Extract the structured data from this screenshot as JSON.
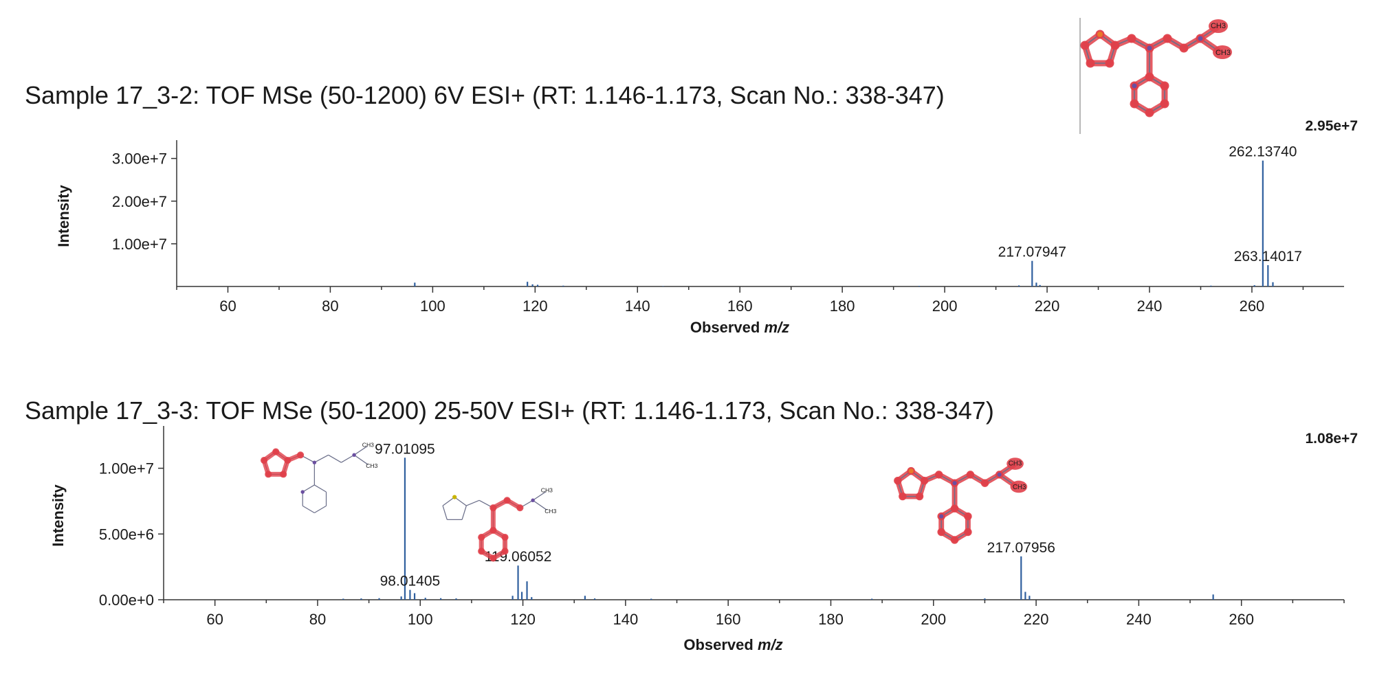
{
  "chart_data": [
    {
      "type": "bar",
      "title": "Sample 17_3-2: TOF MSe (50-1200) 6V ESI+ (RT: 1.146-1.173, Scan No.: 338-347)",
      "xlabel_prefix": "Observed ",
      "xlabel_italic": "m/z",
      "ylabel": "Intensity",
      "xlim": [
        50,
        278
      ],
      "ylim": [
        0,
        33000000
      ],
      "x_ticks": [
        60,
        80,
        100,
        120,
        140,
        160,
        180,
        200,
        220,
        240,
        260
      ],
      "y_ticks": [
        10000000,
        20000000,
        30000000
      ],
      "y_tick_labels": [
        "1.00e+7",
        "2.00e+7",
        "3.00e+7"
      ],
      "max_intensity_label": "2.95e+7",
      "peaks": [
        {
          "mz": 96.5,
          "intensity": 900000
        },
        {
          "mz": 118.5,
          "intensity": 1100000
        },
        {
          "mz": 119.5,
          "intensity": 500000
        },
        {
          "mz": 120.5,
          "intensity": 400000
        },
        {
          "mz": 125.5,
          "intensity": 200000
        },
        {
          "mz": 145.0,
          "intensity": 100000
        },
        {
          "mz": 195.0,
          "intensity": 150000
        },
        {
          "mz": 214.5,
          "intensity": 250000
        },
        {
          "mz": 217.07947,
          "intensity": 6000000,
          "label": "217.07947"
        },
        {
          "mz": 217.9,
          "intensity": 900000
        },
        {
          "mz": 218.6,
          "intensity": 350000
        },
        {
          "mz": 252.0,
          "intensity": 200000
        },
        {
          "mz": 260.5,
          "intensity": 300000
        },
        {
          "mz": 262.1374,
          "intensity": 29500000,
          "label": "262.13740"
        },
        {
          "mz": 263.14017,
          "intensity": 5000000,
          "label": "263.14017"
        },
        {
          "mz": 264.1,
          "intensity": 1000000
        }
      ]
    },
    {
      "type": "bar",
      "title": "Sample 17_3-3: TOF MSe (50-1200) 25-50V ESI+ (RT: 1.146-1.173, Scan No.: 338-347)",
      "xlabel_prefix": "Observed ",
      "xlabel_italic": "m/z",
      "ylabel": "Intensity",
      "xlim": [
        50,
        280
      ],
      "ylim": [
        0,
        12800000
      ],
      "x_ticks": [
        60,
        80,
        100,
        120,
        140,
        160,
        180,
        200,
        220,
        240,
        260
      ],
      "y_ticks": [
        0,
        5000000,
        10000000
      ],
      "y_tick_labels": [
        "0.00e+0",
        "5.00e+6",
        "1.00e+7"
      ],
      "max_intensity_label": "1.08e+7",
      "peaks": [
        {
          "mz": 85.0,
          "intensity": 80000
        },
        {
          "mz": 88.5,
          "intensity": 100000
        },
        {
          "mz": 92.0,
          "intensity": 120000
        },
        {
          "mz": 96.3,
          "intensity": 250000
        },
        {
          "mz": 97.01095,
          "intensity": 10800000,
          "label": "97.01095"
        },
        {
          "mz": 98.01405,
          "intensity": 750000,
          "label": "98.01405"
        },
        {
          "mz": 98.9,
          "intensity": 500000
        },
        {
          "mz": 101.0,
          "intensity": 150000
        },
        {
          "mz": 104.0,
          "intensity": 120000
        },
        {
          "mz": 107.0,
          "intensity": 100000
        },
        {
          "mz": 118.0,
          "intensity": 300000
        },
        {
          "mz": 119.06052,
          "intensity": 2600000,
          "label": "119.06052"
        },
        {
          "mz": 119.8,
          "intensity": 600000
        },
        {
          "mz": 120.8,
          "intensity": 1400000
        },
        {
          "mz": 121.7,
          "intensity": 200000
        },
        {
          "mz": 132.1,
          "intensity": 300000
        },
        {
          "mz": 134.0,
          "intensity": 100000
        },
        {
          "mz": 145.0,
          "intensity": 80000
        },
        {
          "mz": 188.0,
          "intensity": 80000
        },
        {
          "mz": 210.0,
          "intensity": 100000
        },
        {
          "mz": 217.07956,
          "intensity": 3300000,
          "label": "217.07956"
        },
        {
          "mz": 217.9,
          "intensity": 600000
        },
        {
          "mz": 218.7,
          "intensity": 300000
        },
        {
          "mz": 254.5,
          "intensity": 400000
        }
      ]
    }
  ],
  "structures": [
    {
      "name": "parent-structure",
      "labels": [
        "CH3",
        "CH3"
      ]
    },
    {
      "name": "fragment-97-structure",
      "labels": [
        "CH3",
        "CH3"
      ]
    },
    {
      "name": "fragment-119-structure",
      "labels": [
        "CH3",
        "CH3"
      ]
    },
    {
      "name": "fragment-217-structure",
      "labels": [
        "CH3",
        "CH3"
      ]
    }
  ],
  "colors": {
    "peak": "#2f5f9e",
    "axis": "#333333",
    "highlight": "#e0404a",
    "bond": "#6b6f8a"
  }
}
